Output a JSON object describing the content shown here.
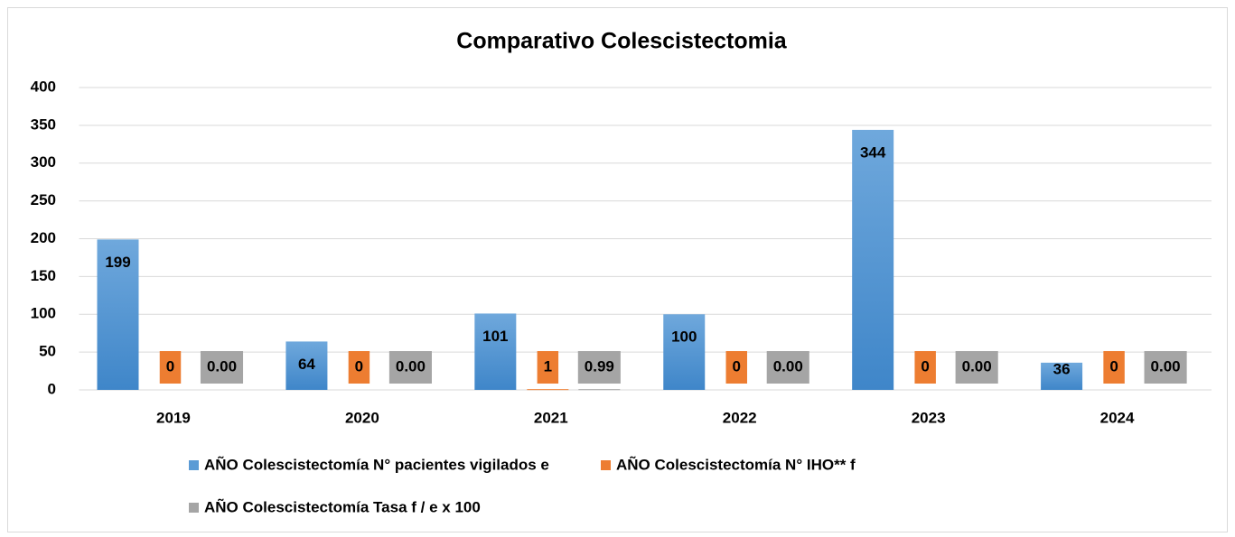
{
  "chart_data": {
    "type": "bar",
    "title": "Comparativo Colescistectomia",
    "categories": [
      "2019",
      "2020",
      "2021",
      "2022",
      "2023",
      "2024"
    ],
    "series": [
      {
        "name": "AÑO Colescistectomía N° pacientes vigilados e",
        "color": "#5b9bd5",
        "values": [
          199,
          64,
          101,
          100,
          344,
          36
        ]
      },
      {
        "name": "AÑO Colescistectomía N° IHO** f",
        "color": "#ed7d31",
        "values": [
          0,
          0,
          1,
          0,
          0,
          0
        ],
        "label_background": true
      },
      {
        "name": "AÑO Colescistectomía Tasa f / e x 100",
        "color": "#a5a5a5",
        "values": [
          0,
          0,
          0.99,
          0,
          0,
          0
        ],
        "value_labels": [
          "0.00",
          "0.00",
          "0.99",
          "0.00",
          "0.00",
          "0.00"
        ],
        "label_background": true
      }
    ],
    "ylim": [
      0,
      400
    ],
    "yticks": [
      0,
      50,
      100,
      150,
      200,
      250,
      300,
      350,
      400
    ],
    "grid": true,
    "legend": "bottom"
  }
}
